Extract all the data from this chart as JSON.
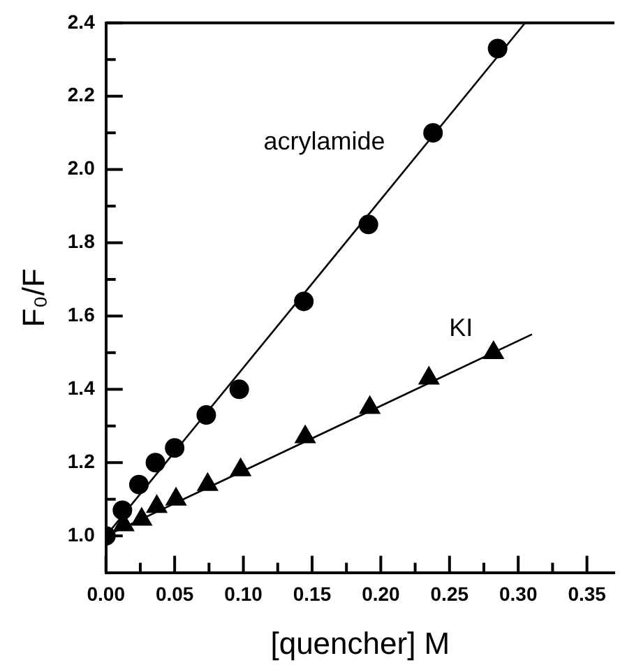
{
  "chart_data": {
    "type": "scatter",
    "xlabel": "[quencher] M",
    "ylabel": "F₀/F",
    "xlim": [
      0,
      0.37
    ],
    "ylim": [
      0.9,
      2.4
    ],
    "xticks": [
      {
        "value": 0,
        "label": "0.00"
      },
      {
        "value": 0.025,
        "label": null
      },
      {
        "value": 0.05,
        "label": "0.05"
      },
      {
        "value": 0.075,
        "label": null
      },
      {
        "value": 0.1,
        "label": "0.10"
      },
      {
        "value": 0.125,
        "label": null
      },
      {
        "value": 0.15,
        "label": "0.15"
      },
      {
        "value": 0.175,
        "label": null
      },
      {
        "value": 0.2,
        "label": "0.20"
      },
      {
        "value": 0.225,
        "label": null
      },
      {
        "value": 0.25,
        "label": "0.25"
      },
      {
        "value": 0.275,
        "label": null
      },
      {
        "value": 0.3,
        "label": "0.30"
      },
      {
        "value": 0.325,
        "label": null
      },
      {
        "value": 0.35,
        "label": "0.35"
      }
    ],
    "yticks": [
      {
        "value": 1.0,
        "label": "1.0"
      },
      {
        "value": 1.1,
        "label": null
      },
      {
        "value": 1.2,
        "label": "1.2"
      },
      {
        "value": 1.3,
        "label": null
      },
      {
        "value": 1.4,
        "label": "1.4"
      },
      {
        "value": 1.5,
        "label": null
      },
      {
        "value": 1.6,
        "label": "1.6"
      },
      {
        "value": 1.7,
        "label": null
      },
      {
        "value": 1.8,
        "label": "1.8"
      },
      {
        "value": 1.9,
        "label": null
      },
      {
        "value": 2.0,
        "label": "2.0"
      },
      {
        "value": 2.1,
        "label": null
      },
      {
        "value": 2.2,
        "label": "2.2"
      },
      {
        "value": 2.3,
        "label": null
      },
      {
        "value": 2.4,
        "label": "2.4"
      }
    ],
    "grid": false,
    "legend": false,
    "series": [
      {
        "type": "scatter",
        "marker": "circle",
        "color": "#000000",
        "x": [
          0,
          0.012,
          0.024,
          0.036,
          0.05,
          0.073,
          0.097,
          0.144,
          0.191,
          0.238,
          0.285
        ],
        "values": [
          1.0,
          1.07,
          1.14,
          1.2,
          1.24,
          1.33,
          1.4,
          1.64,
          1.85,
          2.1,
          2.33
        ]
      },
      {
        "type": "scatter",
        "marker": "triangle",
        "color": "#000000",
        "x": [
          0.013,
          0.026,
          0.037,
          0.051,
          0.074,
          0.098,
          0.145,
          0.192,
          0.235,
          0.282
        ],
        "values": [
          1.03,
          1.045,
          1.08,
          1.1,
          1.14,
          1.18,
          1.27,
          1.35,
          1.43,
          1.5
        ]
      },
      {
        "type": "line",
        "marker": "none",
        "color": "#000000",
        "x": [
          0,
          0.305
        ],
        "values": [
          1.0,
          2.4
        ]
      },
      {
        "type": "line",
        "marker": "none",
        "color": "#000000",
        "x": [
          0,
          0.31
        ],
        "values": [
          1.0,
          1.55
        ]
      }
    ],
    "annotations": [
      "acrylamide",
      "KI"
    ]
  }
}
